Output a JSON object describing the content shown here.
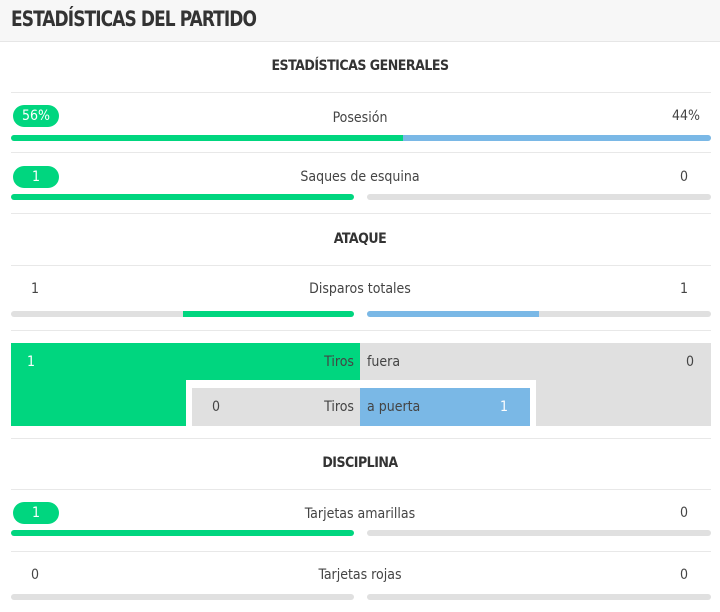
{
  "title": "ESTADÍSTICAS DEL PARTIDO",
  "colors": {
    "home": "#00d67f",
    "away": "#7ab8e6",
    "track": "#e0e0e0"
  },
  "sections": {
    "general": {
      "title": "ESTADÍSTICAS GENERALES",
      "possession": {
        "label": "Posesión",
        "home": "56%",
        "away": "44%",
        "home_pct": 56,
        "away_pct": 44
      },
      "corners": {
        "label": "Saques de esquina",
        "home": "1",
        "away": "0"
      }
    },
    "attack": {
      "title": "ATAQUE",
      "total_shots": {
        "label": "Disparos totales",
        "home": "1",
        "away": "1"
      },
      "shots": {
        "label_left": "Tiros",
        "off_label": "fuera",
        "on_label": "a puerta",
        "off_home": "1",
        "off_away": "0",
        "on_home": "0",
        "on_away": "1"
      }
    },
    "discipline": {
      "title": "DISCIPLINA",
      "yellow": {
        "label": "Tarjetas amarillas",
        "home": "1",
        "away": "0"
      },
      "red": {
        "label": "Tarjetas rojas",
        "home": "0",
        "away": "0"
      }
    }
  }
}
